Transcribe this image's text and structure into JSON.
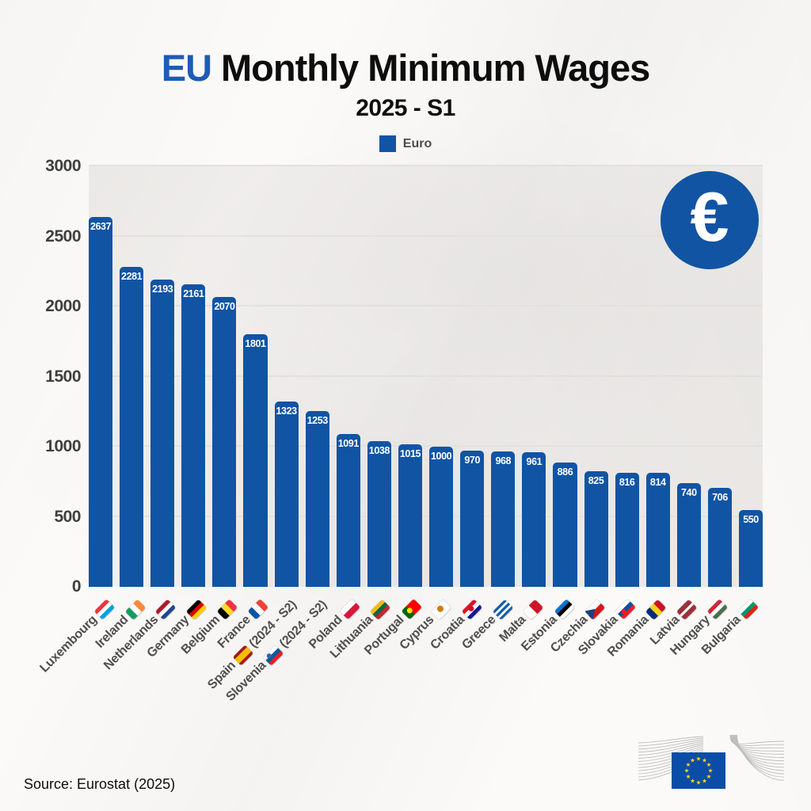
{
  "title": {
    "highlight": "EU",
    "rest": "Monthly Minimum Wages"
  },
  "subtitle": "2025 - S1",
  "legend": {
    "label": "Euro"
  },
  "euro_badge": {
    "symbol": "€"
  },
  "source": "Source: Eurostat (2025)",
  "colors": {
    "bar": "#1154a4",
    "title_highlight": "#1d5bb5",
    "grid": "#e2e1de",
    "axis_text": "#3f3f3f",
    "label_text": "#4f4f4f",
    "value_text": "#ffffff",
    "ec_logo_blue": "#0a4da6",
    "ec_logo_star": "#ffd617",
    "ec_logo_line": "#bdbdbd"
  },
  "y_axis": {
    "max": 3000,
    "ticks": [
      0,
      500,
      1000,
      1500,
      2000,
      2500,
      3000
    ]
  },
  "bars": [
    {
      "country": "Luxembourg",
      "suffix": "",
      "value": 2637,
      "flag": {
        "name": "flag-luxembourg",
        "dir": "h",
        "stripes": [
          {
            "c": "#EF3340"
          },
          {
            "c": "#FFFFFF"
          },
          {
            "c": "#00A2E1"
          }
        ]
      }
    },
    {
      "country": "Ireland",
      "suffix": "",
      "value": 2281,
      "flag": {
        "name": "flag-ireland",
        "dir": "v",
        "stripes": [
          {
            "c": "#169B62"
          },
          {
            "c": "#FFFFFF"
          },
          {
            "c": "#FF883E"
          }
        ]
      }
    },
    {
      "country": "Netherlands",
      "suffix": "",
      "value": 2193,
      "flag": {
        "name": "flag-netherlands",
        "dir": "h",
        "stripes": [
          {
            "c": "#AE1C28"
          },
          {
            "c": "#FFFFFF"
          },
          {
            "c": "#21468B"
          }
        ]
      }
    },
    {
      "country": "Germany",
      "suffix": "",
      "value": 2161,
      "flag": {
        "name": "flag-germany",
        "dir": "h",
        "stripes": [
          {
            "c": "#000000"
          },
          {
            "c": "#DD0000"
          },
          {
            "c": "#FFCE00"
          }
        ]
      }
    },
    {
      "country": "Belgium",
      "suffix": "",
      "value": 2070,
      "flag": {
        "name": "flag-belgium",
        "dir": "v",
        "stripes": [
          {
            "c": "#000000"
          },
          {
            "c": "#FDDA24"
          },
          {
            "c": "#EF3340"
          }
        ]
      }
    },
    {
      "country": "France",
      "suffix": "",
      "value": 1801,
      "flag": {
        "name": "flag-france",
        "dir": "v",
        "stripes": [
          {
            "c": "#0055A4"
          },
          {
            "c": "#FFFFFF"
          },
          {
            "c": "#EF4135"
          }
        ]
      }
    },
    {
      "country": "Spain",
      "suffix": "(2024 - S2)",
      "value": 1323,
      "flag": {
        "name": "flag-spain",
        "dir": "h",
        "stripes": [
          {
            "c": "#AA151B",
            "w": 0.25
          },
          {
            "c": "#F1BF00",
            "w": 0.5
          },
          {
            "c": "#AA151B",
            "w": 0.25
          }
        ]
      }
    },
    {
      "country": "Slovenia",
      "suffix": "(2024 - S2)",
      "value": 1253,
      "flag": {
        "name": "flag-slovenia",
        "dir": "h",
        "stripes": [
          {
            "c": "#FFFFFF"
          },
          {
            "c": "#005DA4"
          },
          {
            "c": "#ED1C24"
          }
        ],
        "emblem": {
          "c": "#2F66AD",
          "x": 30,
          "y": 33,
          "s": 6
        }
      }
    },
    {
      "country": "Poland",
      "suffix": "",
      "value": 1091,
      "flag": {
        "name": "flag-poland",
        "dir": "h",
        "stripes": [
          {
            "c": "#FFFFFF",
            "w": 0.5
          },
          {
            "c": "#DC143C",
            "w": 0.5
          }
        ]
      }
    },
    {
      "country": "Lithuania",
      "suffix": "",
      "value": 1038,
      "flag": {
        "name": "flag-lithuania",
        "dir": "h",
        "stripes": [
          {
            "c": "#FDB913"
          },
          {
            "c": "#006A44"
          },
          {
            "c": "#C1272D"
          }
        ]
      }
    },
    {
      "country": "Portugal",
      "suffix": "",
      "value": 1015,
      "flag": {
        "name": "flag-portugal",
        "dir": "v",
        "stripes": [
          {
            "c": "#006600",
            "w": 0.4
          },
          {
            "c": "#FF0000",
            "w": 0.6
          }
        ],
        "emblem": {
          "c": "#FFE500",
          "x": 40,
          "y": 50,
          "s": 7
        }
      }
    },
    {
      "country": "Cyprus",
      "suffix": "",
      "value": 1000,
      "flag": {
        "name": "flag-cyprus",
        "dir": "h",
        "stripes": [
          {
            "c": "#FFFFFF"
          }
        ],
        "emblem": {
          "c": "#D57800",
          "x": 50,
          "y": 42,
          "s": 8
        }
      }
    },
    {
      "country": "Croatia",
      "suffix": "",
      "value": 970,
      "flag": {
        "name": "flag-croatia",
        "dir": "h",
        "stripes": [
          {
            "c": "#E0112B"
          },
          {
            "c": "#FFFFFF"
          },
          {
            "c": "#171796"
          }
        ],
        "emblem": {
          "c": "#C8102E",
          "x": 50,
          "y": 42,
          "s": 7
        }
      }
    },
    {
      "country": "Greece",
      "suffix": "",
      "value": 968,
      "flag": {
        "name": "flag-greece",
        "dir": "h",
        "stripes": [
          {
            "c": "#0D5EAF"
          },
          {
            "c": "#FFFFFF"
          },
          {
            "c": "#0D5EAF"
          },
          {
            "c": "#FFFFFF"
          },
          {
            "c": "#0D5EAF"
          }
        ]
      }
    },
    {
      "country": "Malta",
      "suffix": "",
      "value": 961,
      "flag": {
        "name": "flag-malta",
        "dir": "v",
        "stripes": [
          {
            "c": "#FFFFFF",
            "w": 0.5
          },
          {
            "c": "#CF142B",
            "w": 0.5
          }
        ]
      }
    },
    {
      "country": "Estonia",
      "suffix": "",
      "value": 886,
      "flag": {
        "name": "flag-estonia",
        "dir": "h",
        "stripes": [
          {
            "c": "#0072CE"
          },
          {
            "c": "#000000"
          },
          {
            "c": "#FFFFFF"
          }
        ]
      }
    },
    {
      "country": "Czechia",
      "suffix": "",
      "value": 825,
      "flag": {
        "name": "flag-czechia",
        "dir": "h",
        "stripes": [
          {
            "c": "#FFFFFF",
            "w": 0.5
          },
          {
            "c": "#D7141A",
            "w": 0.5
          }
        ],
        "triangle": {
          "c": "#11457E"
        }
      }
    },
    {
      "country": "Slovakia",
      "suffix": "",
      "value": 816,
      "flag": {
        "name": "flag-slovakia",
        "dir": "h",
        "stripes": [
          {
            "c": "#FFFFFF"
          },
          {
            "c": "#0B4EA2"
          },
          {
            "c": "#EE1C25"
          }
        ],
        "emblem": {
          "c": "#EE1C25",
          "x": 35,
          "y": 55,
          "s": 6
        }
      }
    },
    {
      "country": "Romania",
      "suffix": "",
      "value": 814,
      "flag": {
        "name": "flag-romania",
        "dir": "v",
        "stripes": [
          {
            "c": "#002B7F"
          },
          {
            "c": "#FCD116"
          },
          {
            "c": "#CE1126"
          }
        ]
      }
    },
    {
      "country": "Latvia",
      "suffix": "",
      "value": 740,
      "flag": {
        "name": "flag-latvia",
        "dir": "h",
        "stripes": [
          {
            "c": "#9E3039",
            "w": 0.4
          },
          {
            "c": "#FFFFFF",
            "w": 0.2
          },
          {
            "c": "#9E3039",
            "w": 0.4
          }
        ]
      }
    },
    {
      "country": "Hungary",
      "suffix": "",
      "value": 706,
      "flag": {
        "name": "flag-hungary",
        "dir": "h",
        "stripes": [
          {
            "c": "#CE2939"
          },
          {
            "c": "#FFFFFF"
          },
          {
            "c": "#477050"
          }
        ]
      }
    },
    {
      "country": "Bulgaria",
      "suffix": "",
      "value": 550,
      "flag": {
        "name": "flag-bulgaria",
        "dir": "h",
        "stripes": [
          {
            "c": "#FFFFFF"
          },
          {
            "c": "#00966E"
          },
          {
            "c": "#D62612"
          }
        ]
      }
    }
  ],
  "chart_data": {
    "type": "bar",
    "title": "EU Monthly Minimum Wages",
    "subtitle": "2025 - S1",
    "legend": [
      "Euro"
    ],
    "legend_position": "top-center",
    "grid": true,
    "bar_color": "#1154a4",
    "ylim": [
      0,
      3000
    ],
    "yticks": [
      0,
      500,
      1000,
      1500,
      2000,
      2500,
      3000
    ],
    "categories": [
      "Luxembourg",
      "Ireland",
      "Netherlands",
      "Germany",
      "Belgium",
      "France",
      "Spain (2024 - S2)",
      "Slovenia (2024 - S2)",
      "Poland",
      "Lithuania",
      "Portugal",
      "Cyprus",
      "Croatia",
      "Greece",
      "Malta",
      "Estonia",
      "Czechia",
      "Slovakia",
      "Romania",
      "Latvia",
      "Hungary",
      "Bulgaria"
    ],
    "values": [
      2637,
      2281,
      2193,
      2161,
      2070,
      1801,
      1323,
      1253,
      1091,
      1038,
      1015,
      1000,
      970,
      968,
      961,
      886,
      825,
      816,
      814,
      740,
      706,
      550
    ],
    "value_labels_shown": true,
    "source": "Source: Eurostat (2025)"
  }
}
